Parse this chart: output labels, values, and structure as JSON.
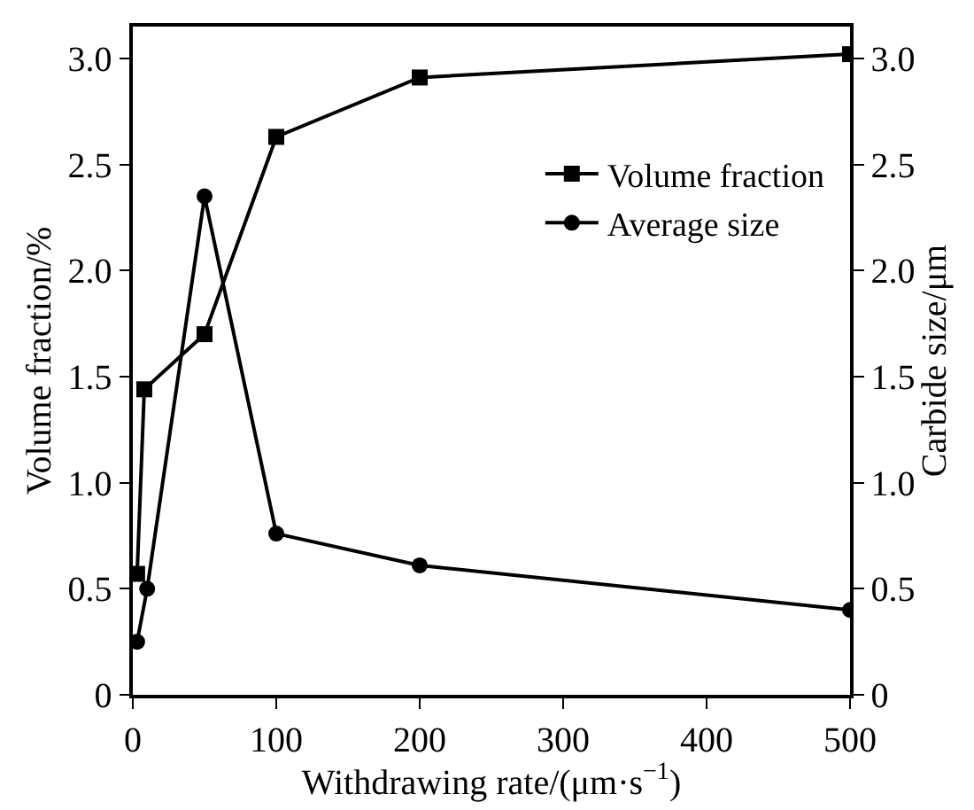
{
  "chart_data": {
    "type": "line",
    "xlabel": "Withdrawing rate/(μm·s$^{−1}$)",
    "ylabel": "Volume fraction/%",
    "y2label": "Carbide size/μm",
    "series": [
      {
        "name": "Volume fraction",
        "color": "#000000",
        "marker": "square",
        "x": [
          3,
          8,
          50,
          100,
          200,
          500
        ],
        "values": [
          0.57,
          1.44,
          1.7,
          2.63,
          2.91,
          3.02
        ]
      },
      {
        "name": "Average size",
        "color": "#000000",
        "marker": "circle",
        "axis": "y2",
        "x": [
          3,
          10,
          50,
          100,
          200,
          500
        ],
        "values": [
          0.25,
          0.5,
          2.35,
          0.76,
          0.61,
          0.4
        ]
      }
    ],
    "xlim": [
      0,
      500
    ],
    "xticks": [
      0,
      100,
      200,
      300,
      400,
      500
    ],
    "ylim": [
      0,
      3.15
    ],
    "yticks": [
      0,
      0.5,
      {
        "value": 1,
        "label": "1.0"
      },
      1.5,
      {
        "value": 2,
        "label": "2.0"
      },
      2.5,
      {
        "value": 3,
        "label": "3.0"
      }
    ],
    "y2lim": [
      0,
      3.15
    ],
    "y2ticks": [
      0,
      0.5,
      {
        "value": 1,
        "label": "1.0"
      },
      1.5,
      {
        "value": 2,
        "label": "2.0"
      },
      2.5,
      {
        "value": 3,
        "label": "3.0"
      }
    ],
    "legend": "top right",
    "line_style": "solid"
  }
}
